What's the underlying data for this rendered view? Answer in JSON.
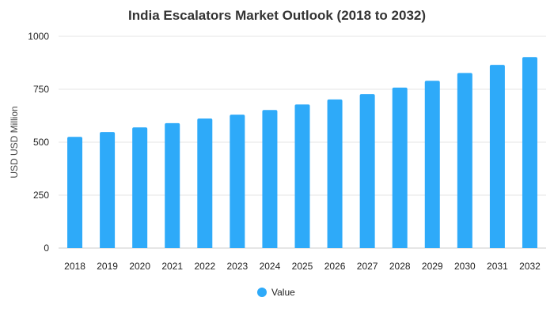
{
  "chart_data": {
    "type": "bar",
    "title": "India Escalators Market Outlook (2018 to 2032)",
    "ylabel": "USD USD Million",
    "xlabel": "",
    "categories": [
      "2018",
      "2019",
      "2020",
      "2021",
      "2022",
      "2023",
      "2024",
      "2025",
      "2026",
      "2027",
      "2028",
      "2029",
      "2030",
      "2031",
      "2032"
    ],
    "series": [
      {
        "name": "Value",
        "color": "#2eaaf9",
        "values": [
          525,
          548,
          570,
          590,
          612,
          630,
          652,
          678,
          702,
          727,
          758,
          790,
          827,
          865,
          902
        ]
      }
    ],
    "ylim": [
      0,
      1000
    ],
    "yticks": [
      "0",
      "250",
      "500",
      "750",
      "1000"
    ],
    "grid": true,
    "legend_position": "bottom"
  }
}
